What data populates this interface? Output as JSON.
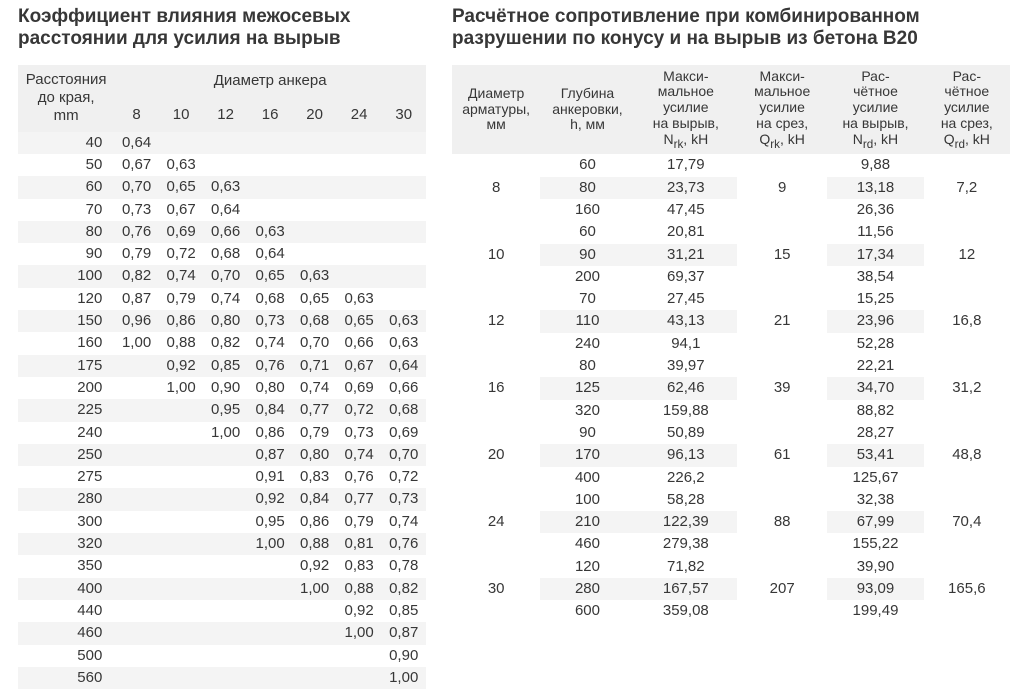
{
  "left": {
    "title": "Коэффициент влияния межосевых расстоянии для усилия на вырыв",
    "columns": {
      "edge_header": "Расстояния\nдо края,\nmm",
      "group_header": "Диаметр анкера",
      "diameters": [
        "8",
        "10",
        "12",
        "16",
        "20",
        "24",
        "30"
      ]
    },
    "rows": [
      {
        "edge": "40",
        "v": [
          "0,64",
          "",
          "",
          "",
          "",
          "",
          ""
        ]
      },
      {
        "edge": "50",
        "v": [
          "0,67",
          "0,63",
          "",
          "",
          "",
          "",
          ""
        ]
      },
      {
        "edge": "60",
        "v": [
          "0,70",
          "0,65",
          "0,63",
          "",
          "",
          "",
          ""
        ]
      },
      {
        "edge": "70",
        "v": [
          "0,73",
          "0,67",
          "0,64",
          "",
          "",
          "",
          ""
        ]
      },
      {
        "edge": "80",
        "v": [
          "0,76",
          "0,69",
          "0,66",
          "0,63",
          "",
          "",
          ""
        ]
      },
      {
        "edge": "90",
        "v": [
          "0,79",
          "0,72",
          "0,68",
          "0,64",
          "",
          "",
          ""
        ]
      },
      {
        "edge": "100",
        "v": [
          "0,82",
          "0,74",
          "0,70",
          "0,65",
          "0,63",
          "",
          ""
        ]
      },
      {
        "edge": "120",
        "v": [
          "0,87",
          "0,79",
          "0,74",
          "0,68",
          "0,65",
          "0,63",
          ""
        ]
      },
      {
        "edge": "150",
        "v": [
          "0,96",
          "0,86",
          "0,80",
          "0,73",
          "0,68",
          "0,65",
          "0,63"
        ]
      },
      {
        "edge": "160",
        "v": [
          "1,00",
          "0,88",
          "0,82",
          "0,74",
          "0,70",
          "0,66",
          "0,63"
        ]
      },
      {
        "edge": "175",
        "v": [
          "",
          "0,92",
          "0,85",
          "0,76",
          "0,71",
          "0,67",
          "0,64"
        ]
      },
      {
        "edge": "200",
        "v": [
          "",
          "1,00",
          "0,90",
          "0,80",
          "0,74",
          "0,69",
          "0,66"
        ]
      },
      {
        "edge": "225",
        "v": [
          "",
          "",
          "0,95",
          "0,84",
          "0,77",
          "0,72",
          "0,68"
        ]
      },
      {
        "edge": "240",
        "v": [
          "",
          "",
          "1,00",
          "0,86",
          "0,79",
          "0,73",
          "0,69"
        ]
      },
      {
        "edge": "250",
        "v": [
          "",
          "",
          "",
          "0,87",
          "0,80",
          "0,74",
          "0,70"
        ]
      },
      {
        "edge": "275",
        "v": [
          "",
          "",
          "",
          "0,91",
          "0,83",
          "0,76",
          "0,72"
        ]
      },
      {
        "edge": "280",
        "v": [
          "",
          "",
          "",
          "0,92",
          "0,84",
          "0,77",
          "0,73"
        ]
      },
      {
        "edge": "300",
        "v": [
          "",
          "",
          "",
          "0,95",
          "0,86",
          "0,79",
          "0,74"
        ]
      },
      {
        "edge": "320",
        "v": [
          "",
          "",
          "",
          "1,00",
          "0,88",
          "0,81",
          "0,76"
        ]
      },
      {
        "edge": "350",
        "v": [
          "",
          "",
          "",
          "",
          "0,92",
          "0,83",
          "0,78"
        ]
      },
      {
        "edge": "400",
        "v": [
          "",
          "",
          "",
          "",
          "1,00",
          "0,88",
          "0,82"
        ]
      },
      {
        "edge": "440",
        "v": [
          "",
          "",
          "",
          "",
          "",
          "0,92",
          "0,85"
        ]
      },
      {
        "edge": "460",
        "v": [
          "",
          "",
          "",
          "",
          "",
          "1,00",
          "0,87"
        ]
      },
      {
        "edge": "500",
        "v": [
          "",
          "",
          "",
          "",
          "",
          "",
          "0,90"
        ]
      },
      {
        "edge": "560",
        "v": [
          "",
          "",
          "",
          "",
          "",
          "",
          "1,00"
        ]
      }
    ]
  },
  "right": {
    "title": "Расчётное сопротивление при комбинированном разрушении по конусу и на вырыв из бетона В20",
    "headers": [
      "Диаметр\nарматуры,\nмм",
      "Глубина\nанкеровки,\nh, мм",
      "Макси-\nмальное\nусилие\nна вырыв,\nN_rk, kH",
      "Макси-\nмальное\nусилие\nна срез,\nQ_rk, kH",
      "Рас-\nчётное\nусилие\nна вырыв,\nN_rd, kH",
      "Рас-\nчётное\nусилие\nна срез,\nQ_rd, kH"
    ],
    "groups": [
      {
        "d": "8",
        "qrk": "9",
        "qrd": "7,2",
        "rows": [
          [
            "60",
            "17,79",
            "9,88"
          ],
          [
            "80",
            "23,73",
            "13,18"
          ],
          [
            "160",
            "47,45",
            "26,36"
          ]
        ]
      },
      {
        "d": "10",
        "qrk": "15",
        "qrd": "12",
        "rows": [
          [
            "60",
            "20,81",
            "11,56"
          ],
          [
            "90",
            "31,21",
            "17,34"
          ],
          [
            "200",
            "69,37",
            "38,54"
          ]
        ]
      },
      {
        "d": "12",
        "qrk": "21",
        "qrd": "16,8",
        "rows": [
          [
            "70",
            "27,45",
            "15,25"
          ],
          [
            "110",
            "43,13",
            "23,96"
          ],
          [
            "240",
            "94,1",
            "52,28"
          ]
        ]
      },
      {
        "d": "16",
        "qrk": "39",
        "qrd": "31,2",
        "rows": [
          [
            "80",
            "39,97",
            "22,21"
          ],
          [
            "125",
            "62,46",
            "34,70"
          ],
          [
            "320",
            "159,88",
            "88,82"
          ]
        ]
      },
      {
        "d": "20",
        "qrk": "61",
        "qrd": "48,8",
        "rows": [
          [
            "90",
            "50,89",
            "28,27"
          ],
          [
            "170",
            "96,13",
            "53,41"
          ],
          [
            "400",
            "226,2",
            "125,67"
          ]
        ]
      },
      {
        "d": "24",
        "qrk": "88",
        "qrd": "70,4",
        "rows": [
          [
            "100",
            "58,28",
            "32,38"
          ],
          [
            "210",
            "122,39",
            "67,99"
          ],
          [
            "460",
            "279,38",
            "155,22"
          ]
        ]
      },
      {
        "d": "30",
        "qrk": "207",
        "qrd": "165,6",
        "rows": [
          [
            "120",
            "71,82",
            "39,90"
          ],
          [
            "280",
            "167,57",
            "93,09"
          ],
          [
            "600",
            "359,08",
            "199,49"
          ]
        ]
      }
    ]
  }
}
